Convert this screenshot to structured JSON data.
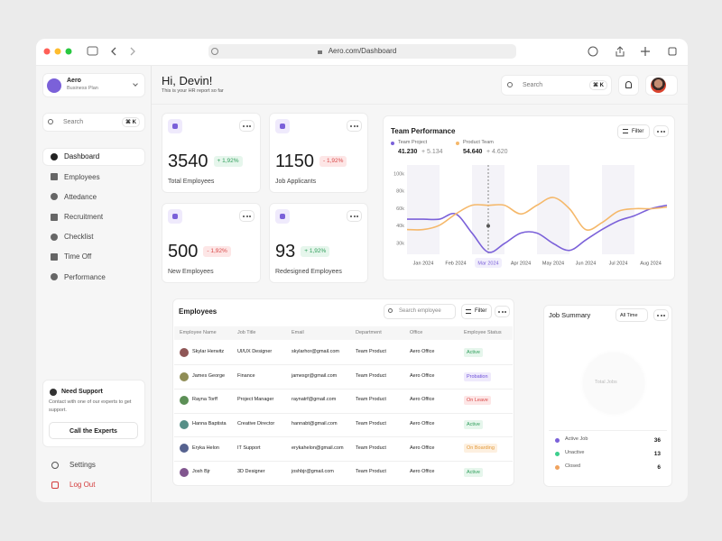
{
  "browser": {
    "url": "Aero.com/Dashboard"
  },
  "sidebar": {
    "workspace": {
      "name": "Aero",
      "plan": "Business Plan"
    },
    "search": {
      "placeholder": "Search",
      "shortcut": "⌘ K"
    },
    "nav": [
      "Dashboard",
      "Employees",
      "Attedance",
      "Recruitment",
      "Checklist",
      "Time Off",
      "Performance"
    ],
    "active": 0,
    "support": {
      "title": "Need Support",
      "text": "Contact with one of our experts to get support.",
      "button": "Call the Experts"
    },
    "settings": "Settings",
    "logout": "Log Out"
  },
  "header": {
    "greeting": "Hi, Devin!",
    "subtitle": "This is your HR report so far",
    "search": "Search",
    "shortcut": "⌘ K"
  },
  "stats": [
    {
      "value": 3540,
      "change": "+ 1,92%",
      "label": "Total Employees",
      "trend": "up"
    },
    {
      "value": 1150,
      "change": "- 1,92%",
      "label": "Job Applicants",
      "trend": "down"
    },
    {
      "value": 500,
      "change": "- 1,92%",
      "label": "New Employees",
      "trend": "down"
    },
    {
      "value": 93,
      "change": "+ 1,92%",
      "label": "Redesigned Employees",
      "trend": "up"
    }
  ],
  "chart_data": {
    "type": "line",
    "title": "Team Performance",
    "filter": "Filter",
    "x": [
      null,
      "Jan 2024",
      null,
      "Feb 2024",
      null,
      "Mar 2024",
      null,
      "Apr 2024",
      null,
      "May 2024",
      null,
      "Jun 2024",
      null,
      "Jul 2024",
      null,
      "Aug 2024",
      null
    ],
    "series": [
      {
        "name": "Team Project",
        "color": "#7b61d9",
        "total": "41.230",
        "change": "+ 5.134",
        "values": [
          48000,
          48000,
          48000,
          54000,
          36000,
          25000,
          30000,
          36000,
          36000,
          30000,
          26000,
          32000,
          38000,
          46000,
          52000,
          60000,
          64000
        ]
      },
      {
        "name": "Product Team",
        "color": "#f5b86a",
        "total": "54.640",
        "change": "+ 4.620",
        "values": [
          38000,
          38000,
          41000,
          54000,
          64000,
          64000,
          64000,
          54000,
          64000,
          73000,
          60000,
          38000,
          44000,
          57000,
          60000,
          60000,
          62000
        ]
      }
    ],
    "ylim": [
      30000,
      100000
    ],
    "yticks": [
      {
        "value": 30000,
        "label": "30k"
      },
      {
        "value": 40000,
        "label": "40k"
      },
      {
        "value": 60000,
        "label": "60k"
      },
      {
        "value": 80000,
        "label": "80k"
      },
      {
        "value": 100000,
        "label": "100k"
      }
    ],
    "grid": false,
    "highlight": 5
  },
  "employees": {
    "title": "Employees",
    "search": "Search employee",
    "filter": "Filter",
    "columns": [
      "Employee Name",
      "Job Title",
      "Email",
      "Department",
      "Office",
      "Employee Status"
    ],
    "rows": [
      {
        "name": "Skylar Herwitz",
        "title": "UI/UX Designer",
        "email": "skylarhor@gmail.com",
        "department": "Team Product",
        "office": "Aero Office",
        "status": "Active",
        "tone": "green"
      },
      {
        "name": "James George",
        "title": "Finance",
        "email": "jamesgr@gmail.com",
        "department": "Team Product",
        "office": "Aero Office",
        "status": "Probation",
        "tone": "purple"
      },
      {
        "name": "Rayna Torff",
        "title": "Project Manager",
        "email": "raynatrf@gmail.com",
        "department": "Team Product",
        "office": "Aero Office",
        "status": "On Leave",
        "tone": "red"
      },
      {
        "name": "Hanna Baptista",
        "title": "Creative Director",
        "email": "hannabt@gmail.com",
        "department": "Team Product",
        "office": "Aero Office",
        "status": "Active",
        "tone": "green"
      },
      {
        "name": "Eryka Helon",
        "title": "IT Support",
        "email": "erykahelon@gmail.com",
        "department": "Team Product",
        "office": "Aero Office",
        "status": "On Boarding",
        "tone": "orange"
      },
      {
        "name": "Josh Bjr",
        "title": "3D Designer",
        "email": "joshbjr@gmail.com",
        "department": "Team Product",
        "office": "Aero Office",
        "status": "Active",
        "tone": "green"
      }
    ]
  },
  "job_summary": {
    "title": "Job Summary",
    "period": "All Time",
    "center": "Total Jobs",
    "items": [
      {
        "label": "Active Job",
        "value": 36,
        "color": "#7b61d9"
      },
      {
        "label": "Unactive",
        "value": 13,
        "color": "#3ecf8e"
      },
      {
        "label": "Closed",
        "value": 6,
        "color": "#f0a35e"
      }
    ]
  }
}
